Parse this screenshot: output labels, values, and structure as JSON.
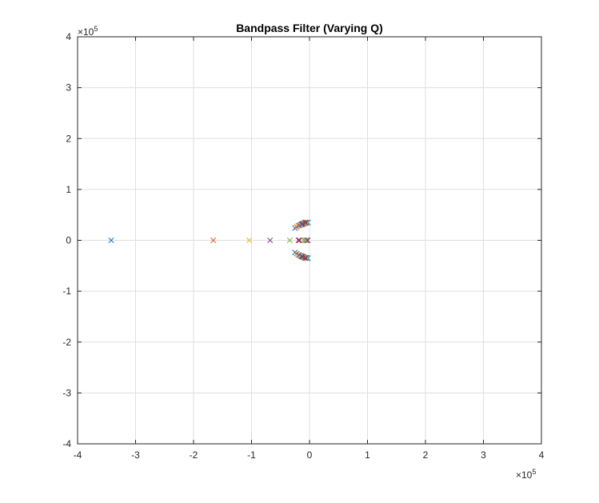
{
  "chart_data": {
    "type": "scatter",
    "title": "Bandpass Filter (Varying Q)",
    "xlabel": "",
    "ylabel": "",
    "xlim": [
      -4,
      4
    ],
    "ylim": [
      -4,
      4
    ],
    "x_exponent": "5",
    "y_exponent": "5",
    "exponent_base": "×10",
    "xticks": [
      "-4",
      "-3",
      "-2",
      "-1",
      "0",
      "1",
      "2",
      "3",
      "4"
    ],
    "yticks": [
      "-4",
      "-3",
      "-2",
      "-1",
      "0",
      "1",
      "2",
      "3",
      "4"
    ],
    "grid": true,
    "marker": "x",
    "series": [
      {
        "color": "#0072BD",
        "points": [
          [
            -3.42,
            0
          ],
          [
            -0.25,
            0.24
          ],
          [
            -0.25,
            -0.24
          ],
          [
            -0.14,
            0.31
          ],
          [
            -0.14,
            -0.31
          ],
          [
            -0.07,
            0.34
          ],
          [
            -0.07,
            -0.34
          ],
          [
            -0.04,
            0
          ]
        ]
      },
      {
        "color": "#D95319",
        "points": [
          [
            -1.66,
            0
          ],
          [
            -0.22,
            0.26
          ],
          [
            -0.22,
            -0.26
          ],
          [
            -0.12,
            0.32
          ],
          [
            -0.12,
            -0.32
          ],
          [
            -0.06,
            0.34
          ],
          [
            -0.06,
            -0.34
          ],
          [
            -0.06,
            0
          ]
        ]
      },
      {
        "color": "#EDB120",
        "points": [
          [
            -1.04,
            0
          ],
          [
            -0.2,
            0.28
          ],
          [
            -0.2,
            -0.28
          ],
          [
            -0.11,
            0.33
          ],
          [
            -0.11,
            -0.33
          ],
          [
            -0.05,
            0.35
          ],
          [
            -0.05,
            -0.35
          ],
          [
            -0.08,
            0
          ]
        ]
      },
      {
        "color": "#7E2F8E",
        "points": [
          [
            -0.68,
            0
          ],
          [
            -0.18,
            0.29
          ],
          [
            -0.18,
            -0.29
          ],
          [
            -0.1,
            0.33
          ],
          [
            -0.1,
            -0.33
          ],
          [
            -0.04,
            0.35
          ],
          [
            -0.04,
            -0.35
          ],
          [
            -0.17,
            0
          ]
        ]
      },
      {
        "color": "#77AC30",
        "points": [
          [
            -0.34,
            0
          ],
          [
            -0.16,
            0.3
          ],
          [
            -0.16,
            -0.3
          ],
          [
            -0.09,
            0.34
          ],
          [
            -0.09,
            -0.34
          ],
          [
            -0.03,
            0.35
          ],
          [
            -0.03,
            -0.35
          ],
          [
            -0.1,
            0
          ]
        ]
      },
      {
        "color": "#4DBEEE",
        "points": [
          [
            -0.15,
            0.31
          ],
          [
            -0.15,
            -0.31
          ],
          [
            -0.08,
            0.34
          ],
          [
            -0.08,
            -0.34
          ],
          [
            -0.02,
            0.35
          ],
          [
            -0.02,
            -0.35
          ],
          [
            -0.05,
            0
          ]
        ]
      },
      {
        "color": "#A2142F",
        "points": [
          [
            -0.13,
            0.32
          ],
          [
            -0.13,
            -0.32
          ],
          [
            -0.07,
            0.35
          ],
          [
            -0.07,
            -0.35
          ],
          [
            -0.19,
            0
          ],
          [
            -0.03,
            0
          ]
        ]
      }
    ]
  }
}
